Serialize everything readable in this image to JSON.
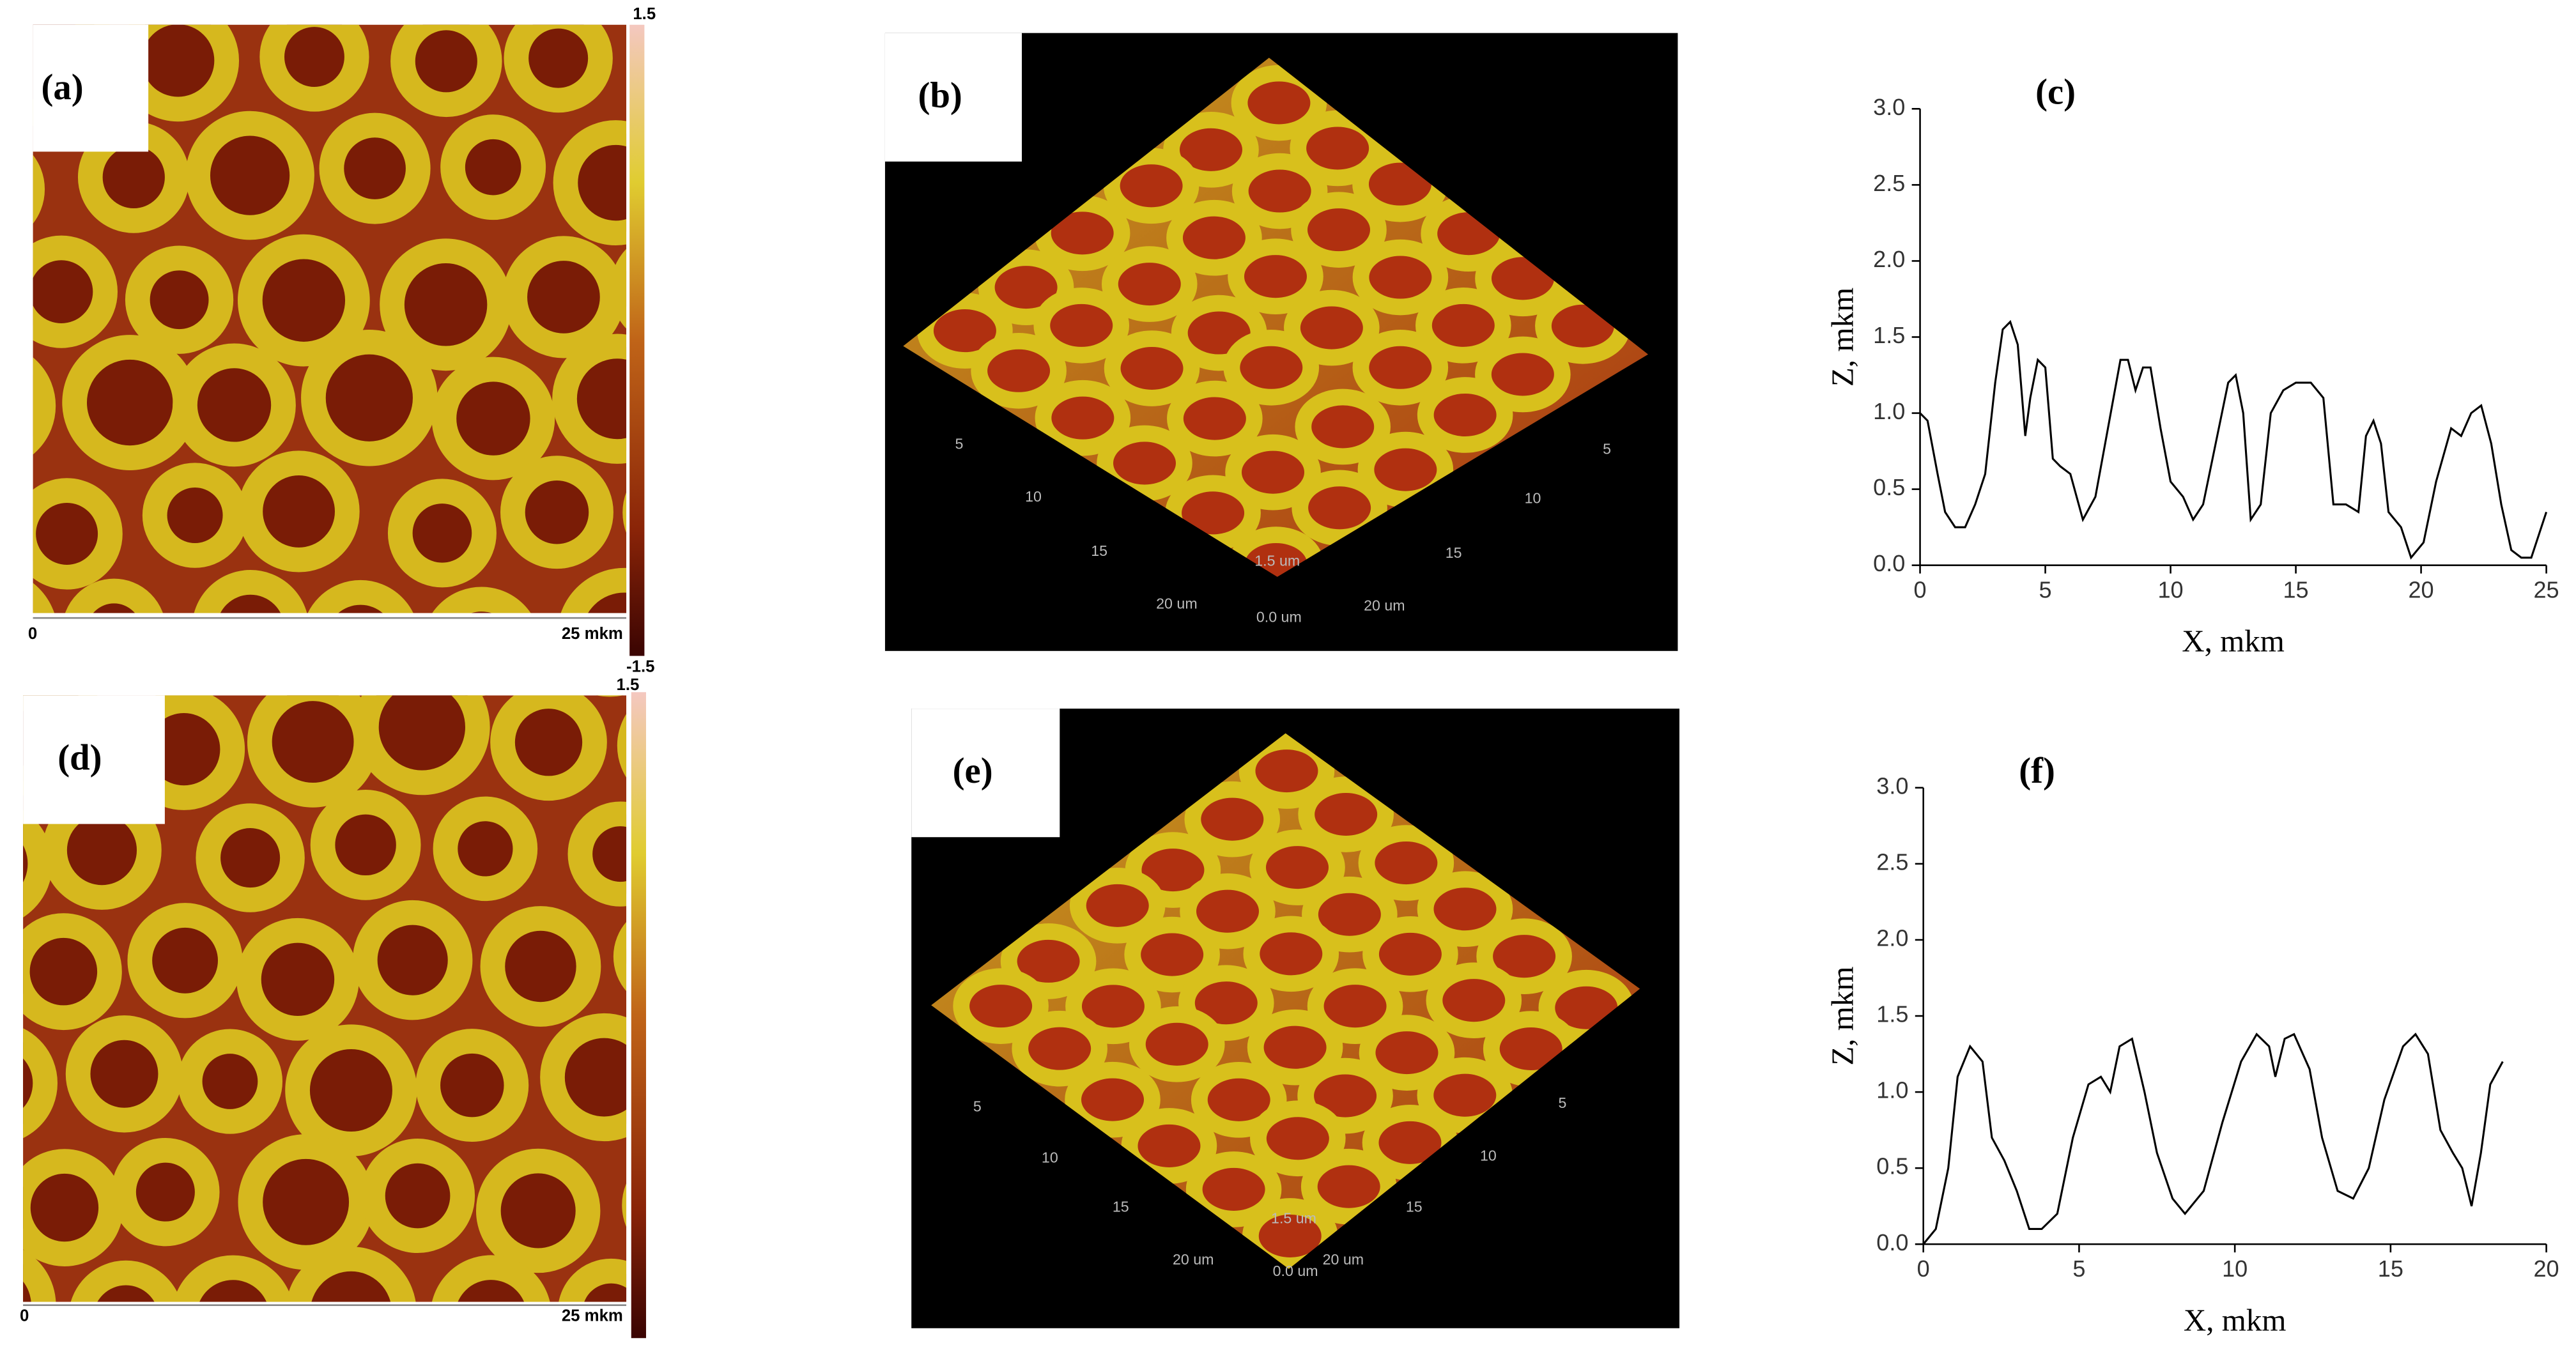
{
  "panels": [
    {
      "label": "(a)",
      "colorbar_top": "1.5",
      "colorbar_bottom": "-1.5",
      "scale_start": "0",
      "scale_end": "25 mkm"
    },
    {
      "label": "(b)",
      "left_axis": [
        "5",
        "10",
        "15",
        "20 um"
      ],
      "right_axis": [
        "5",
        "10",
        "15",
        "20 um"
      ],
      "z_axis": [
        "1.5 um",
        "0.0 um"
      ]
    },
    {
      "label": "(d)",
      "colorbar_top": "1.5",
      "scale_start": "0",
      "scale_end": "25 mkm"
    },
    {
      "label": "(e)",
      "left_axis": [
        "5",
        "10",
        "15",
        "20 um"
      ],
      "right_axis": [
        "5",
        "10",
        "15",
        "20 um"
      ],
      "z_axis": [
        "1.5 um",
        "0.0 um"
      ]
    }
  ],
  "chart_data": [
    {
      "type": "line",
      "title": "(c)",
      "x_label": "X, mkm",
      "y_label": "Z, mkm",
      "color": "#000000",
      "x": [
        0,
        0.3,
        0.7,
        1.0,
        1.4,
        1.8,
        2.2,
        2.6,
        3.0,
        3.3,
        3.6,
        3.9,
        4.2,
        4.4,
        4.7,
        5.0,
        5.3,
        5.6,
        6.0,
        6.5,
        7.0,
        7.5,
        8.0,
        8.3,
        8.6,
        8.9,
        9.2,
        9.6,
        10.0,
        10.5,
        10.9,
        11.3,
        11.8,
        12.3,
        12.6,
        12.9,
        13.2,
        13.6,
        14.0,
        14.5,
        15.0,
        15.6,
        16.1,
        16.5,
        17.0,
        17.5,
        17.8,
        18.1,
        18.4,
        18.7,
        19.2,
        19.6,
        20.1,
        20.6,
        21.2,
        21.6,
        22.0,
        22.4,
        22.8,
        23.2,
        23.6,
        24.0,
        24.4,
        24.7,
        25.0
      ],
      "values": [
        1.0,
        0.95,
        0.6,
        0.35,
        0.25,
        0.25,
        0.4,
        0.6,
        1.2,
        1.55,
        1.6,
        1.45,
        0.85,
        1.1,
        1.35,
        1.3,
        0.7,
        0.65,
        0.6,
        0.3,
        0.45,
        0.9,
        1.35,
        1.35,
        1.15,
        1.3,
        1.3,
        0.9,
        0.55,
        0.45,
        0.3,
        0.4,
        0.8,
        1.2,
        1.25,
        1.0,
        0.3,
        0.4,
        1.0,
        1.15,
        1.2,
        1.2,
        1.1,
        0.4,
        0.4,
        0.35,
        0.85,
        0.95,
        0.8,
        0.35,
        0.25,
        0.05,
        0.15,
        0.55,
        0.9,
        0.85,
        1.0,
        1.05,
        0.8,
        0.4,
        0.1,
        0.05,
        0.05,
        0.2,
        0.35
      ],
      "xlim": [
        0,
        25
      ],
      "xticks": [
        0,
        5,
        10,
        15,
        20,
        25
      ],
      "ylim": [
        0,
        3
      ],
      "yticks": [
        {
          "value": 0,
          "label": "0.0"
        },
        {
          "value": 0.5,
          "label": "0.5"
        },
        {
          "value": 1,
          "label": "1.0"
        },
        {
          "value": 1.5,
          "label": "1.5"
        },
        {
          "value": 2,
          "label": "2.0"
        },
        {
          "value": 2.5,
          "label": "2.5"
        },
        {
          "value": 3,
          "label": "3.0"
        }
      ]
    },
    {
      "type": "line",
      "title": "(f)",
      "x_label": "X, mkm",
      "y_label": "Z, mkm",
      "color": "#000000",
      "x": [
        0,
        0.4,
        0.8,
        1.1,
        1.5,
        1.9,
        2.2,
        2.6,
        3.0,
        3.4,
        3.8,
        4.3,
        4.8,
        5.3,
        5.7,
        6.0,
        6.3,
        6.7,
        7.1,
        7.5,
        8.0,
        8.4,
        9.0,
        9.6,
        10.2,
        10.7,
        11.1,
        11.3,
        11.6,
        11.9,
        12.4,
        12.8,
        13.3,
        13.8,
        14.3,
        14.8,
        15.4,
        15.8,
        16.2,
        16.6,
        17.0,
        17.3,
        17.6,
        17.9,
        18.2,
        18.6
      ],
      "values": [
        0,
        0.1,
        0.5,
        1.1,
        1.3,
        1.2,
        0.7,
        0.55,
        0.35,
        0.1,
        0.1,
        0.2,
        0.7,
        1.05,
        1.1,
        1.0,
        1.3,
        1.35,
        1.0,
        0.6,
        0.3,
        0.2,
        0.35,
        0.8,
        1.2,
        1.38,
        1.3,
        1.1,
        1.35,
        1.38,
        1.15,
        0.7,
        0.35,
        0.3,
        0.5,
        0.95,
        1.3,
        1.38,
        1.25,
        0.75,
        0.6,
        0.5,
        0.25,
        0.6,
        1.05,
        1.2
      ],
      "xlim": [
        0,
        20
      ],
      "xticks": [
        0,
        5,
        10,
        15,
        20
      ],
      "ylim": [
        0,
        3
      ],
      "yticks": [
        {
          "value": 0,
          "label": "0.0"
        },
        {
          "value": 0.5,
          "label": "0.5"
        },
        {
          "value": 1,
          "label": "1.0"
        },
        {
          "value": 1.5,
          "label": "1.5"
        },
        {
          "value": 2,
          "label": "2.0"
        },
        {
          "value": 2.5,
          "label": "2.5"
        },
        {
          "value": 3,
          "label": "3.0"
        }
      ]
    }
  ]
}
